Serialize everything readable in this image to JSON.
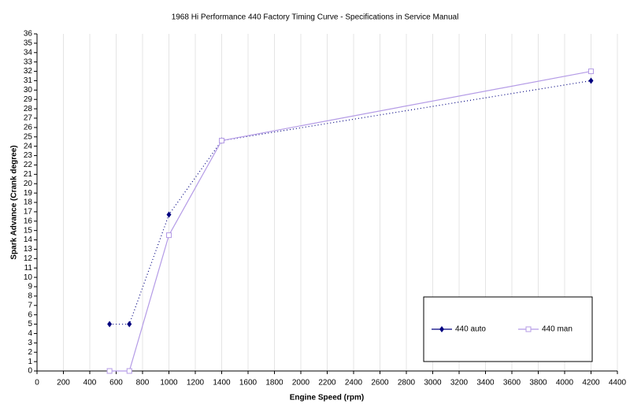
{
  "chart_data": {
    "type": "line",
    "title": "1968 Hi Performance 440 Factory Timing Curve -              Specifications in Service Manual",
    "x_label": "Engine Speed (rpm)",
    "y_label": "Spark Advance (Crank degree)",
    "x": [
      550,
      700,
      1000,
      1400,
      4200
    ],
    "series": [
      {
        "name": "440 auto",
        "color": "#000080",
        "values": [
          5,
          5,
          16.7,
          24.6,
          31
        ],
        "line_style": "dotted",
        "marker": "diamond"
      },
      {
        "name": "440 man",
        "color": "#b49be6",
        "values": [
          0,
          0,
          14.5,
          24.6,
          32
        ],
        "line_style": "solid",
        "marker": "square"
      }
    ],
    "xlim": [
      0,
      4400
    ],
    "xticks": [
      0,
      200,
      400,
      600,
      800,
      1000,
      1200,
      1400,
      1600,
      1800,
      2000,
      2200,
      2400,
      2600,
      2800,
      3000,
      3200,
      3400,
      3600,
      3800,
      4000,
      4200,
      4400
    ],
    "ylim": [
      0,
      36
    ],
    "yticks": [
      0,
      1,
      2,
      3,
      4,
      5,
      6,
      7,
      8,
      9,
      10,
      11,
      12,
      13,
      14,
      15,
      16,
      17,
      18,
      19,
      20,
      21,
      22,
      23,
      24,
      25,
      26,
      27,
      28,
      29,
      30,
      31,
      32,
      33,
      34,
      35,
      36
    ],
    "grid": "x",
    "legend": "lower right"
  }
}
